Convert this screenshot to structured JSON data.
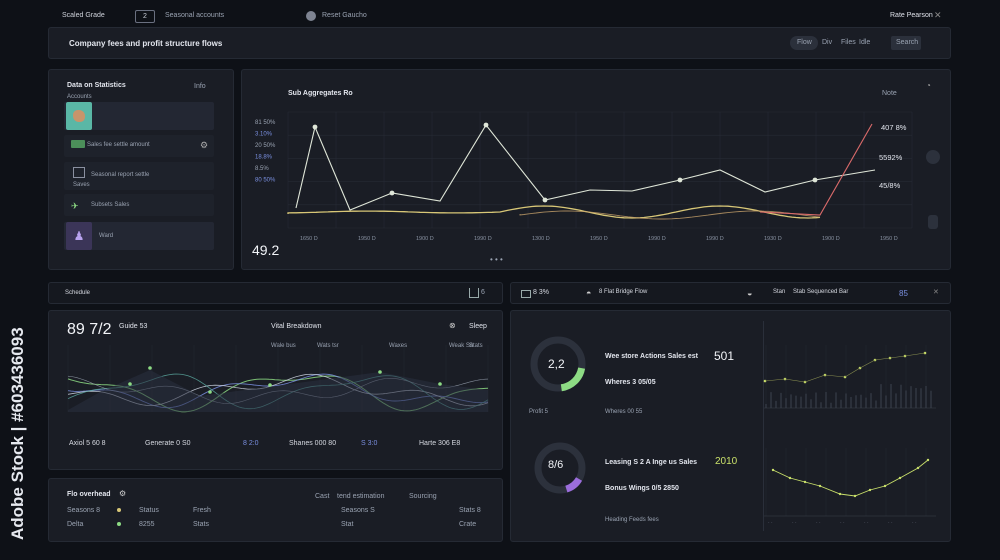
{
  "topbar": {
    "left_label": "Scaled Grade",
    "badge": "2",
    "tag": "Seasonal accounts",
    "toggle_label": "Reset Gaucho",
    "right_label": "Rate Pearson"
  },
  "header": {
    "title": "Company fees and profit structure flows",
    "search": "Flow",
    "tabs": [
      "Div",
      "Files",
      "Idle",
      "Search"
    ]
  },
  "left_panel": {
    "title": "Data on Statistics",
    "side": "Info",
    "items": [
      {
        "label": "Accounts",
        "value": ""
      },
      {
        "label": "Sales fee settle amount",
        "value": ""
      },
      {
        "label": "Saves",
        "value": "Seasonal report settle"
      },
      {
        "label": "Subsets Sales",
        "value": ""
      },
      {
        "label": "Ward",
        "value": ""
      }
    ]
  },
  "main_chart": {
    "title": "Sub Aggregates Ro",
    "side": "Note",
    "corner_value": "49.2",
    "right_labels": [
      "407 8%",
      "5592%",
      "45/8%"
    ],
    "left_labels": [
      "81 50%",
      "3.10%",
      "20 50%",
      "18.8%",
      "8.5%",
      "80 50%"
    ],
    "x_labels": [
      "1650 D",
      "1950 D",
      "1900 D",
      "1990 D",
      "1300 D",
      "1950 D",
      "1990 D",
      "1990 D",
      "1930 D",
      "1900 D",
      "1950 D"
    ],
    "pager": "• • •"
  },
  "bar_left": {
    "label": "Schedule",
    "icon_text": "6"
  },
  "bar_right": {
    "label": "Stan",
    "items": [
      "8 3%",
      "8 Flat Bridge Flow",
      "Stab Sequenced Bar"
    ],
    "right": "85"
  },
  "wave_panel": {
    "big": "89 7/2",
    "sub": "Guide 53",
    "mid": "Vital Breakdown",
    "right": "Sleep",
    "tick_labels": [
      "Wale bus",
      "Wats tsr",
      "Waxes",
      "Weak Sa",
      "Stats"
    ],
    "stats": [
      {
        "label": "Axiol 5 60 8",
        "value": ""
      },
      {
        "label": "Generate 0 S0",
        "value": ""
      },
      {
        "label": "8 2:0",
        "value": ""
      },
      {
        "label": "Shanes 000 80",
        "value": ""
      },
      {
        "label": "S 3:0",
        "value": ""
      },
      {
        "label": "Harte 306 E8",
        "value": ""
      }
    ]
  },
  "table_panel": {
    "title": "Flo overhead",
    "headers": [
      "Cast",
      "tend estimation",
      "Sourcing"
    ],
    "rows": [
      {
        "c1": "Seasons 8",
        "c2": "Status",
        "c3": "Fresh",
        "c4": "Seasons S",
        "c5": "Stats 8"
      },
      {
        "c1": "Delta",
        "c2": "8255",
        "c3": "Stats",
        "c4": "Stat",
        "c5": "Crate"
      }
    ]
  },
  "donut_panel": {
    "donut1_value": "2,2",
    "donut1_caption": "Profit 5",
    "donut2_value": "8/6",
    "title1": "Wee store Actions Sales est",
    "value1": "501",
    "sub1": "Wheres 3 05/05",
    "cap1": "Wheres 00 55",
    "title2": "Leasing S 2 A Inge us Sales",
    "value2": "2010",
    "sub2": "Bonus Wings 0/5 2850",
    "cap2": "Heading Feeds fees"
  },
  "watermark": "Adobe Stock | #603436093",
  "colors": {
    "bg": "#0e1117",
    "panel": "#1a1d25",
    "line_white": "#dfe6d8",
    "line_yellow": "#d8c777",
    "line_red": "#d96a6a",
    "accent_green": "#8ddb84",
    "accent_purple": "#9b6ddc",
    "accent_blue": "#7a8fe0"
  }
}
